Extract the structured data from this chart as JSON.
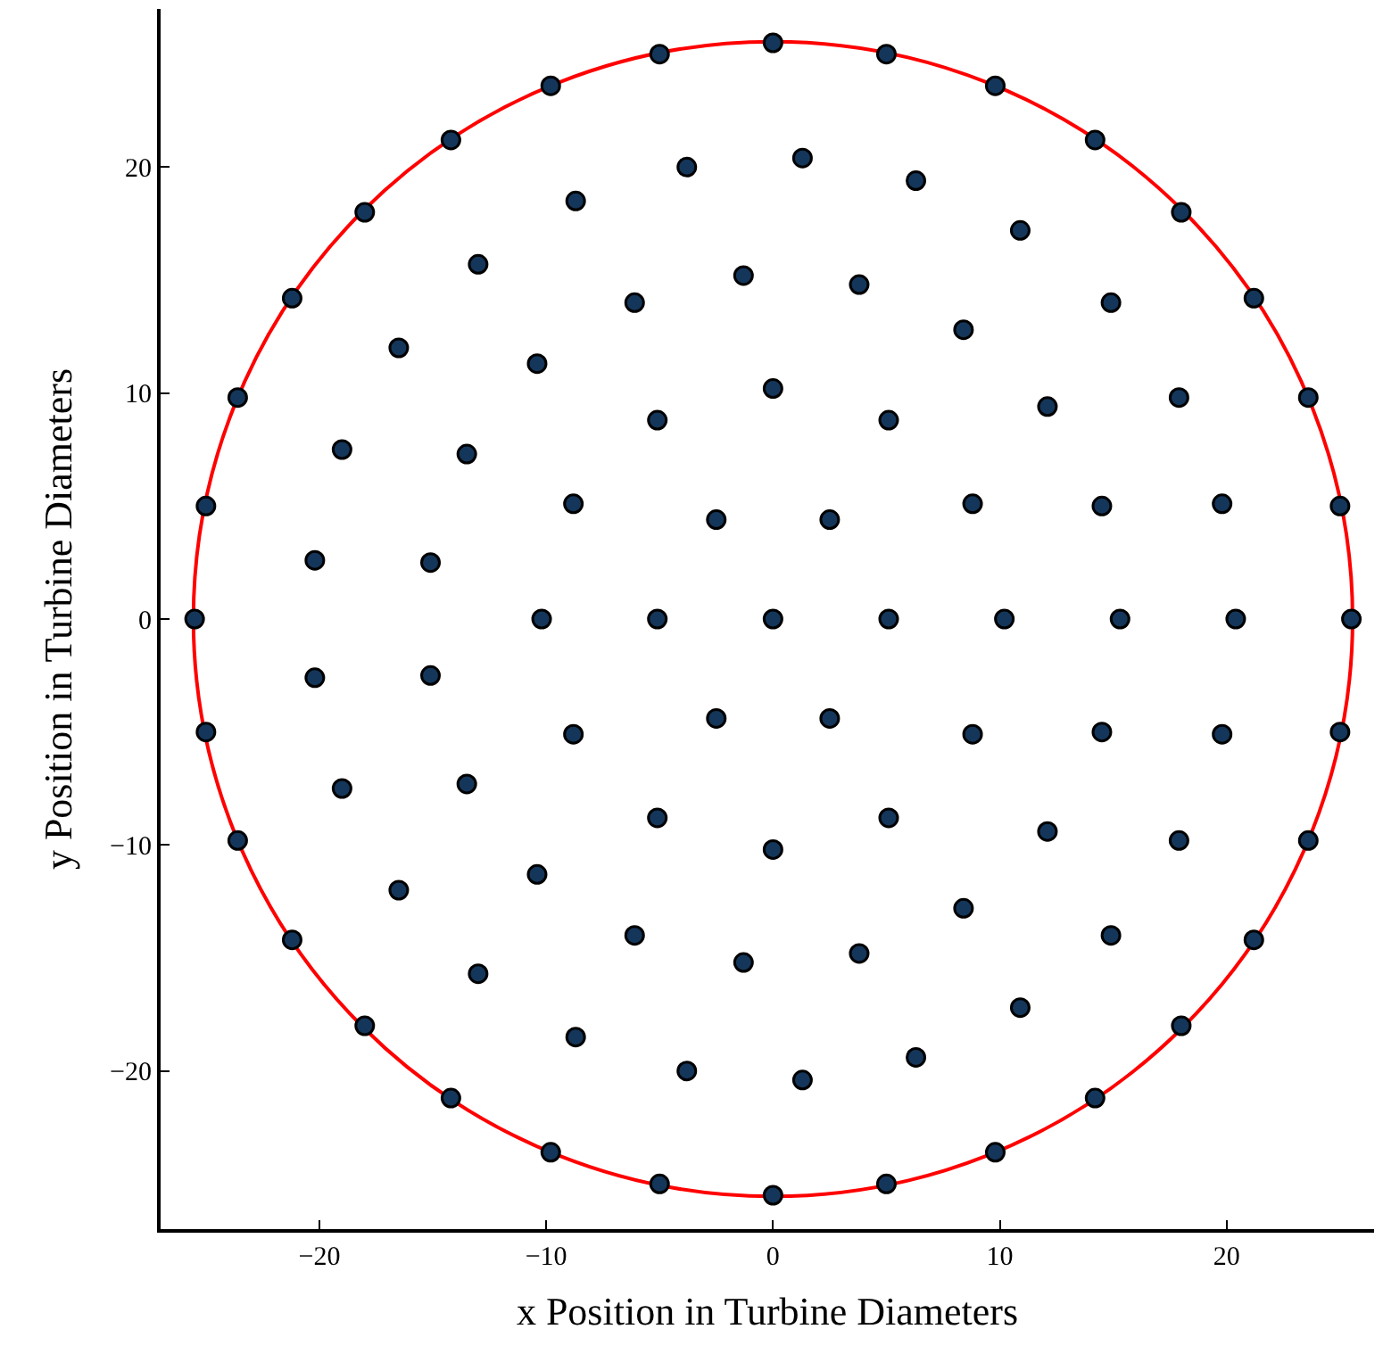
{
  "chart_data": {
    "type": "scatter",
    "xlabel": "x Position in Turbine Diameters",
    "ylabel": "y Position in Turbine Diameters",
    "xlim": [
      -27,
      26.5
    ],
    "ylim": [
      -27,
      27
    ],
    "xticks": [
      {
        "value": -20,
        "label": "−20"
      },
      {
        "value": -10,
        "label": "−10"
      },
      0,
      10,
      20
    ],
    "yticks": [
      {
        "value": -20,
        "label": "−20"
      },
      {
        "value": -10,
        "label": "−10"
      },
      0,
      10,
      20
    ],
    "grid": false,
    "marker": "circle",
    "series": [
      {
        "color": "#14365a",
        "x": [
          0,
          5.1,
          2.5,
          -2.5,
          -5.1,
          -2.5,
          2.5,
          10.2,
          8.8,
          5.1,
          0,
          -5.1,
          -8.8,
          -10.2,
          -8.8,
          -5.1,
          0,
          5.1,
          8.8,
          15.3,
          14.5,
          12.1,
          8.4,
          3.8,
          -1.3,
          -6.1,
          -10.4,
          -13.5,
          -15.1,
          -15.1,
          -13.5,
          -10.4,
          -6.1,
          -1.3,
          3.8,
          8.4,
          12.1,
          14.5,
          20.4,
          19.8,
          17.9,
          14.9,
          10.9,
          6.3,
          1.3,
          -3.8,
          -8.7,
          -13.0,
          -16.5,
          -19.0,
          -20.2,
          -20.2,
          -19.0,
          -16.5,
          -13.0,
          -8.7,
          -3.8,
          1.3,
          6.3,
          10.9,
          14.9,
          17.9,
          19.8,
          25.5,
          25.0,
          23.6,
          21.2,
          18.0,
          14.2,
          9.8,
          5.0,
          0,
          -5.0,
          -9.8,
          -14.2,
          -18.0,
          -21.2,
          -23.6,
          -25.0,
          -25.5,
          -25.0,
          -23.6,
          -21.2,
          -18.0,
          -14.2,
          -9.8,
          -5.0,
          0,
          5.0,
          9.8,
          14.2,
          18.0,
          21.2,
          23.6,
          25.0
        ],
        "values": [
          0,
          0,
          4.4,
          4.4,
          0,
          -4.4,
          -4.4,
          0,
          5.1,
          8.8,
          10.2,
          8.8,
          5.1,
          0,
          -5.1,
          -8.8,
          -10.2,
          -8.8,
          -5.1,
          0,
          5.0,
          9.4,
          12.8,
          14.8,
          15.2,
          14.0,
          11.3,
          7.3,
          2.5,
          -2.5,
          -7.3,
          -11.3,
          -14.0,
          -15.2,
          -14.8,
          -12.8,
          -9.4,
          -5.0,
          0,
          5.1,
          9.8,
          14.0,
          17.2,
          19.4,
          20.4,
          20.0,
          18.5,
          15.7,
          12.0,
          7.5,
          2.6,
          -2.6,
          -7.5,
          -12.0,
          -15.7,
          -18.5,
          -20.0,
          -20.4,
          -19.4,
          -17.2,
          -14.0,
          -9.8,
          -5.1,
          0,
          5.0,
          9.8,
          14.2,
          18.0,
          21.2,
          23.6,
          25.0,
          25.5,
          25.0,
          23.6,
          21.2,
          18.0,
          14.2,
          9.8,
          5.0,
          0,
          -5.0,
          -9.8,
          -14.2,
          -18.0,
          -21.2,
          -23.6,
          -25.0,
          -25.5,
          -25.0,
          -23.6,
          -21.2,
          -18.0,
          -14.2,
          -9.8,
          -5.0
        ]
      }
    ]
  }
}
